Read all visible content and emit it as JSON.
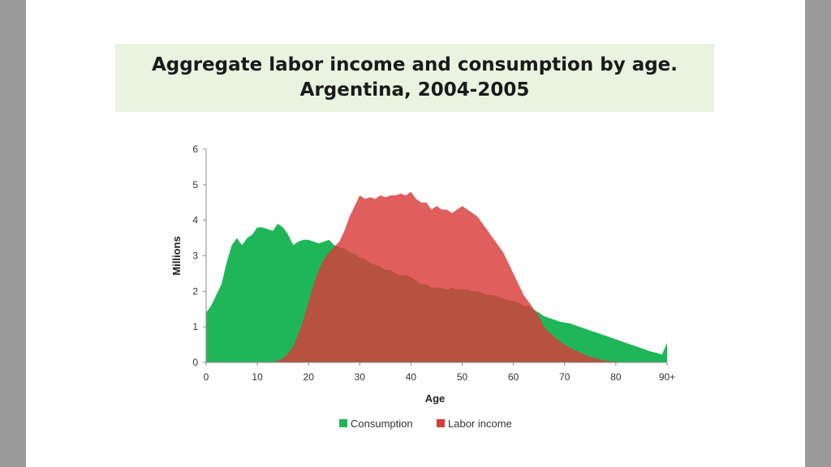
{
  "chart_data": {
    "type": "area",
    "title_line1": "Aggregate labor income and consumption by age.",
    "title_line2": "Argentina, 2004-2005",
    "xlabel": "Age",
    "ylabel": "Millions",
    "xlim": [
      0,
      90
    ],
    "ylim": [
      0,
      6
    ],
    "x_ticks": [
      {
        "value": 0,
        "label": "0"
      },
      {
        "value": 10,
        "label": "10"
      },
      {
        "value": 20,
        "label": "20"
      },
      {
        "value": 30,
        "label": "30"
      },
      {
        "value": 40,
        "label": "40"
      },
      {
        "value": 50,
        "label": "50"
      },
      {
        "value": 60,
        "label": "60"
      },
      {
        "value": 70,
        "label": "70"
      },
      {
        "value": 80,
        "label": "80"
      },
      {
        "value": 90,
        "label": "90+"
      }
    ],
    "y_ticks": [
      0,
      1,
      2,
      3,
      4,
      5,
      6
    ],
    "grid": false,
    "legend_position": "bottom",
    "series": [
      {
        "name": "Consumption",
        "color": "#1fb65a",
        "x": [
          0,
          1,
          2,
          3,
          4,
          5,
          6,
          7,
          8,
          9,
          10,
          11,
          12,
          13,
          14,
          15,
          16,
          17,
          18,
          19,
          20,
          21,
          22,
          23,
          24,
          25,
          26,
          27,
          28,
          29,
          30,
          31,
          32,
          33,
          34,
          35,
          36,
          37,
          38,
          39,
          40,
          41,
          42,
          43,
          44,
          45,
          46,
          47,
          48,
          49,
          50,
          51,
          52,
          53,
          54,
          55,
          56,
          57,
          58,
          59,
          60,
          61,
          62,
          63,
          64,
          65,
          66,
          67,
          68,
          69,
          70,
          71,
          72,
          73,
          74,
          75,
          76,
          77,
          78,
          79,
          80,
          81,
          82,
          83,
          84,
          85,
          86,
          87,
          88,
          89,
          90
        ],
        "values": [
          1.4,
          1.6,
          1.9,
          2.2,
          2.8,
          3.3,
          3.5,
          3.3,
          3.5,
          3.6,
          3.8,
          3.8,
          3.75,
          3.7,
          3.9,
          3.8,
          3.6,
          3.3,
          3.4,
          3.45,
          3.45,
          3.4,
          3.35,
          3.4,
          3.45,
          3.3,
          3.25,
          3.2,
          3.1,
          3.05,
          2.95,
          2.9,
          2.8,
          2.75,
          2.7,
          2.6,
          2.6,
          2.5,
          2.45,
          2.45,
          2.4,
          2.3,
          2.2,
          2.2,
          2.1,
          2.1,
          2.1,
          2.05,
          2.1,
          2.05,
          2.05,
          2.05,
          2.0,
          2.0,
          1.95,
          1.9,
          1.9,
          1.85,
          1.8,
          1.75,
          1.72,
          1.68,
          1.6,
          1.58,
          1.48,
          1.4,
          1.3,
          1.25,
          1.2,
          1.15,
          1.12,
          1.1,
          1.05,
          1.0,
          0.95,
          0.9,
          0.85,
          0.8,
          0.75,
          0.7,
          0.65,
          0.6,
          0.55,
          0.5,
          0.45,
          0.4,
          0.35,
          0.3,
          0.27,
          0.22,
          0.55
        ]
      },
      {
        "name": "Labor income",
        "color": "#d93b3b",
        "x": [
          0,
          1,
          2,
          3,
          4,
          5,
          6,
          7,
          8,
          9,
          10,
          11,
          12,
          13,
          14,
          15,
          16,
          17,
          18,
          19,
          20,
          21,
          22,
          23,
          24,
          25,
          26,
          27,
          28,
          29,
          30,
          31,
          32,
          33,
          34,
          35,
          36,
          37,
          38,
          39,
          40,
          41,
          42,
          43,
          44,
          45,
          46,
          47,
          48,
          49,
          50,
          51,
          52,
          53,
          54,
          55,
          56,
          57,
          58,
          59,
          60,
          61,
          62,
          63,
          64,
          65,
          66,
          67,
          68,
          69,
          70,
          71,
          72,
          73,
          74,
          75,
          76,
          77,
          78,
          79,
          80,
          81,
          82,
          83,
          84,
          85,
          86,
          87,
          88,
          89,
          90
        ],
        "values": [
          0,
          0,
          0,
          0,
          0,
          0,
          0,
          0,
          0,
          0,
          0,
          0,
          0,
          0.02,
          0.05,
          0.12,
          0.25,
          0.45,
          0.8,
          1.2,
          1.7,
          2.2,
          2.6,
          2.9,
          3.1,
          3.25,
          3.4,
          3.7,
          4.1,
          4.4,
          4.7,
          4.6,
          4.65,
          4.6,
          4.7,
          4.65,
          4.7,
          4.7,
          4.75,
          4.7,
          4.8,
          4.6,
          4.5,
          4.5,
          4.3,
          4.4,
          4.3,
          4.3,
          4.2,
          4.3,
          4.4,
          4.3,
          4.2,
          4.1,
          3.9,
          3.7,
          3.5,
          3.3,
          3.1,
          2.8,
          2.5,
          2.2,
          1.9,
          1.7,
          1.5,
          1.3,
          1.0,
          0.85,
          0.72,
          0.6,
          0.5,
          0.42,
          0.35,
          0.28,
          0.22,
          0.16,
          0.12,
          0.08,
          0.05,
          0.03,
          0.02,
          0.01,
          0,
          0,
          0,
          0,
          0,
          0,
          0,
          0,
          0
        ]
      }
    ]
  }
}
